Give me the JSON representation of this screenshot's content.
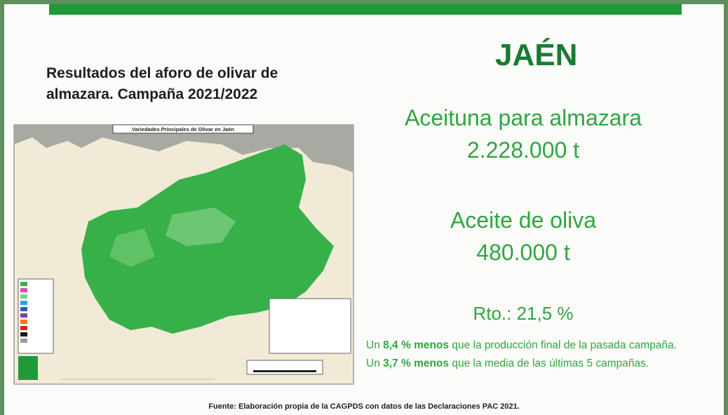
{
  "slide": {
    "title": "Resultados del aforo de olivar de almazara. Campaña 2021/2022",
    "map_title": "Variedades Principales de Olivar en Jaén",
    "region": "JAÉN",
    "olive_label": "Aceituna para almazara",
    "olive_value": "2.228.000 t",
    "oil_label": "Aceite de oliva",
    "oil_value": "480.000 t",
    "yield": "Rto.: 21,5 %",
    "notes": [
      [
        "Un ",
        "8,4 % menos",
        " que la producción final de la pasada campaña."
      ],
      [
        "Un ",
        "3,7 % menos",
        " que la media de las últimas 5 campañas."
      ]
    ],
    "source": "Fuente: Elaboración propia de la CAGPDS con datos de las Declaraciones PAC 2021."
  }
}
